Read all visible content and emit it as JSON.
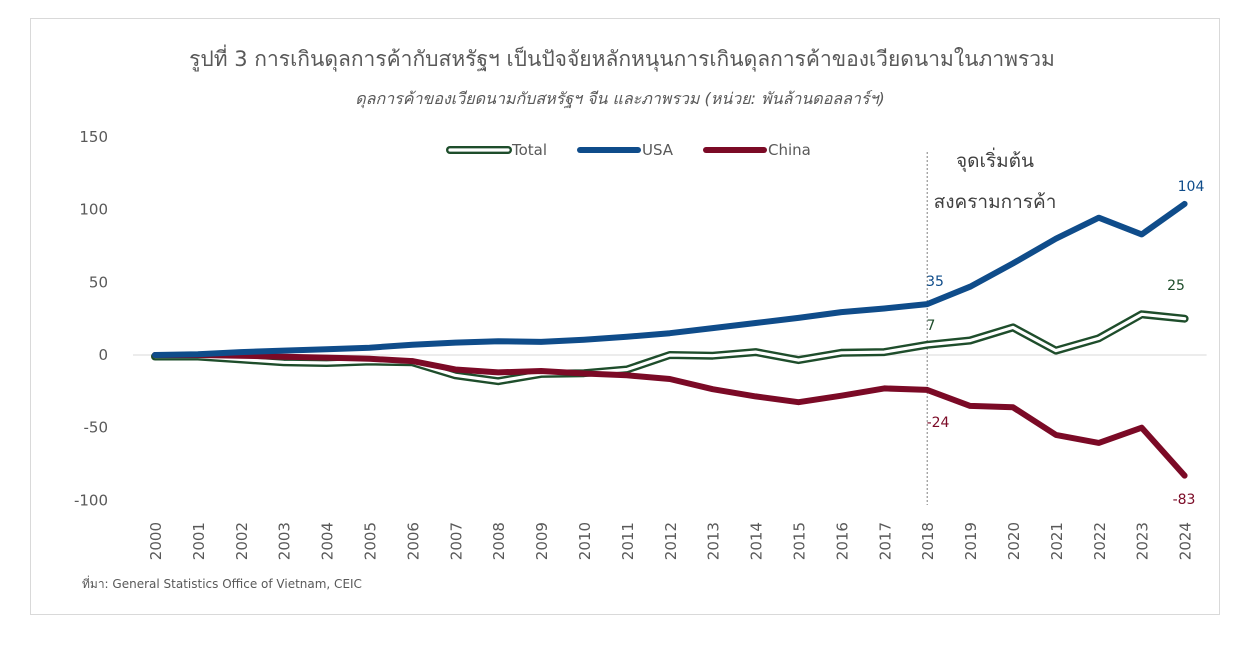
{
  "chart_data": {
    "type": "line",
    "title": "รูปที่ 3 การเกินดุลการค้ากับสหรัฐฯ เป็นปัจจัยหลักหนุนการเกินดุลการค้าของเวียดนามในภาพรวม",
    "subtitle": "ดุลการค้าของเวียดนามกับสหรัฐฯ จีน และภาพรวม (หน่วย: พันล้านดอลลาร์ฯ)",
    "x": [
      "2000",
      "2001",
      "2002",
      "2003",
      "2004",
      "2005",
      "2006",
      "2007",
      "2008",
      "2009",
      "2010",
      "2011",
      "2012",
      "2013",
      "2014",
      "2015",
      "2016",
      "2017",
      "2018",
      "2019",
      "2020",
      "2021",
      "2022",
      "2023",
      "2024"
    ],
    "ylim": [
      -100,
      150
    ],
    "yticks": [
      150,
      100,
      50,
      0,
      -50,
      -100
    ],
    "ytick_labels": [
      "150",
      "100",
      "50",
      "0",
      "-50",
      "-100"
    ],
    "grid": false,
    "legend_placement": "top-center",
    "series": [
      {
        "name": "Total",
        "color": "#1e4d2b",
        "style": "hollow",
        "values": [
          -1,
          -1,
          -3,
          -5,
          -5.5,
          -4.5,
          -5,
          -14,
          -18,
          -13,
          -12.5,
          -10,
          0,
          -0.5,
          2,
          -3.5,
          1.5,
          2,
          7,
          10,
          19,
          3,
          11.5,
          28,
          25
        ]
      },
      {
        "name": "USA",
        "color": "#0f4c8a",
        "style": "solid",
        "values": [
          0,
          0.5,
          2,
          3,
          4,
          5,
          7,
          8.5,
          9.5,
          9,
          10.5,
          12.5,
          15,
          18.5,
          22,
          25.5,
          29.5,
          32,
          35,
          47,
          63,
          80,
          94.5,
          83,
          104
        ]
      },
      {
        "name": "China",
        "color": "#7b0a26",
        "style": "solid",
        "values": [
          0,
          0,
          -0.5,
          -1.2,
          -1.8,
          -2.6,
          -4.2,
          -10,
          -12,
          -11,
          -12.7,
          -14,
          -16.5,
          -23.5,
          -28.5,
          -32.5,
          -28,
          -23,
          -24,
          -35,
          -36,
          -55,
          -60.5,
          -50,
          -83
        ]
      }
    ],
    "data_labels": [
      {
        "series": "USA",
        "x": "2018",
        "text": "35"
      },
      {
        "series": "USA",
        "x": "2024",
        "text": "104"
      },
      {
        "series": "Total",
        "x": "2018",
        "text": "7"
      },
      {
        "series": "Total",
        "x": "2024",
        "text": "25"
      },
      {
        "series": "China",
        "x": "2018",
        "text": "-24"
      },
      {
        "series": "China",
        "x": "2024",
        "text": "-83"
      }
    ],
    "annotation": {
      "x": "2018",
      "line1": "จุดเริ่มต้น",
      "line2": "สงครามการค้า"
    }
  },
  "source": "ที่มา: General Statistics Office of Vietnam, CEIC"
}
